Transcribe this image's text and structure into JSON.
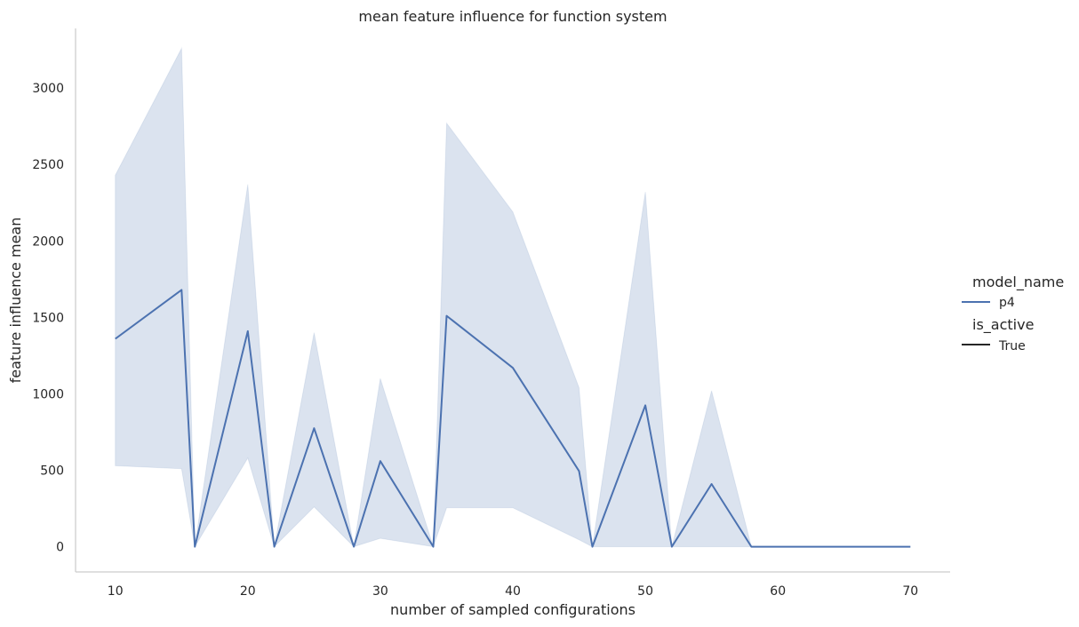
{
  "chart_data": {
    "type": "line",
    "title": "mean feature influence for function system",
    "xlabel": "number of sampled configurations",
    "ylabel": "feature influence mean",
    "xlim": [
      7,
      73
    ],
    "ylim": [
      -165,
      3390
    ],
    "xticks": [
      10,
      20,
      30,
      40,
      50,
      60,
      70
    ],
    "yticks": [
      0,
      500,
      1000,
      1500,
      2000,
      2500,
      3000
    ],
    "grid": false,
    "legend_position": "right",
    "legend": {
      "hue_title": "model_name",
      "hue_entries": [
        {
          "label": "p4",
          "color": "#4c72b0"
        }
      ],
      "style_title": "is_active",
      "style_entries": [
        {
          "label": "True",
          "color": "#262626"
        }
      ]
    },
    "series": [
      {
        "name": "p4",
        "color": "#4c72b0",
        "band_color": "#4c72b0",
        "x": [
          10,
          15,
          16,
          20,
          22,
          25,
          28,
          30,
          34,
          35,
          40,
          45,
          46,
          50,
          52,
          55,
          58,
          60,
          70
        ],
        "y": [
          1360,
          1680,
          0,
          1410,
          0,
          775,
          0,
          560,
          0,
          1510,
          1170,
          495,
          0,
          925,
          0,
          410,
          0,
          0,
          0
        ],
        "ci_low": [
          530,
          510,
          0,
          580,
          0,
          260,
          0,
          55,
          0,
          255,
          255,
          45,
          0,
          0,
          0,
          0,
          0,
          0,
          0
        ],
        "ci_high": [
          2430,
          3260,
          0,
          2370,
          0,
          1400,
          0,
          1100,
          0,
          2770,
          2190,
          1040,
          0,
          2320,
          0,
          1020,
          0,
          0,
          0
        ]
      }
    ]
  }
}
